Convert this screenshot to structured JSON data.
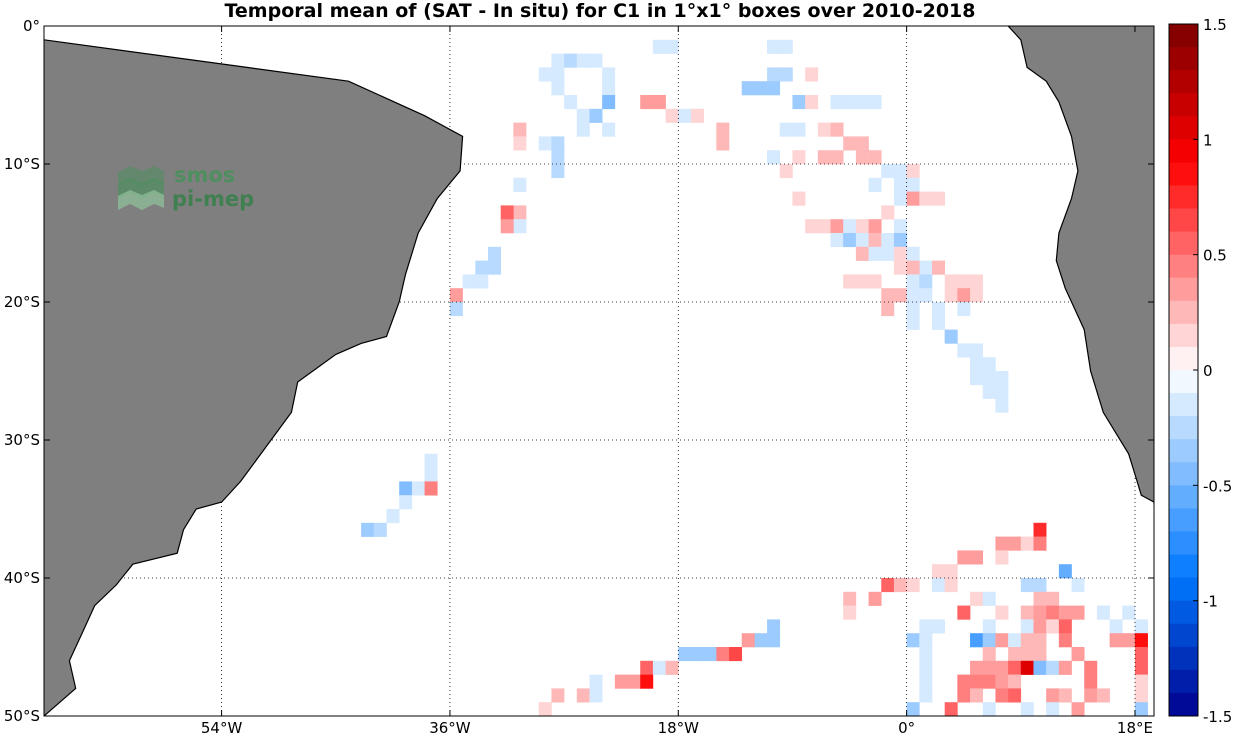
{
  "chart_data": {
    "type": "heatmap",
    "title": "Temporal mean of (SAT - In situ) for C1 in 1°x1° boxes over 2010-2018",
    "xlabel": "",
    "ylabel": "",
    "xlim": [
      -68,
      19.5
    ],
    "ylim": [
      -50,
      0
    ],
    "x_ticks": [
      {
        "value": -54,
        "label": "54°W"
      },
      {
        "value": -36,
        "label": "36°W"
      },
      {
        "value": -18,
        "label": "18°W"
      },
      {
        "value": 0,
        "label": "0°"
      },
      {
        "value": 18,
        "label": "18°E"
      }
    ],
    "y_ticks": [
      {
        "value": 0,
        "label": "0°"
      },
      {
        "value": -10,
        "label": "10°S"
      },
      {
        "value": -20,
        "label": "20°S"
      },
      {
        "value": -30,
        "label": "30°S"
      },
      {
        "value": -40,
        "label": "40°S"
      },
      {
        "value": -50,
        "label": "50°S"
      }
    ],
    "grid": true,
    "colorbar": {
      "range": [
        -1.5,
        1.5
      ],
      "levels": 30,
      "ticks": [
        {
          "value": 1.5,
          "label": "1.5"
        },
        {
          "value": 1,
          "label": "1"
        },
        {
          "value": 0.5,
          "label": "0.5"
        },
        {
          "value": 0,
          "label": "0"
        },
        {
          "value": -0.5,
          "label": "-0.5"
        },
        {
          "value": -1,
          "label": "-1"
        },
        {
          "value": -1.5,
          "label": "-1.5"
        }
      ]
    },
    "land": {
      "south_america": [
        [
          -68,
          -1
        ],
        [
          -52,
          -3
        ],
        [
          -44,
          -4
        ],
        [
          -38,
          -6.5
        ],
        [
          -35,
          -8
        ],
        [
          -35.2,
          -10.5
        ],
        [
          -37,
          -12.5
        ],
        [
          -38.5,
          -15
        ],
        [
          -39.5,
          -18
        ],
        [
          -40,
          -20
        ],
        [
          -41,
          -22.5
        ],
        [
          -43,
          -23
        ],
        [
          -45,
          -23.8
        ],
        [
          -48,
          -25.8
        ],
        [
          -48.5,
          -28
        ],
        [
          -50.5,
          -30.5
        ],
        [
          -52.5,
          -33
        ],
        [
          -54,
          -34.5
        ],
        [
          -56,
          -35
        ],
        [
          -57,
          -36.5
        ],
        [
          -57.5,
          -38.2
        ],
        [
          -61,
          -39
        ],
        [
          -62.3,
          -40.5
        ],
        [
          -64,
          -42
        ],
        [
          -65,
          -44
        ],
        [
          -66,
          -46
        ],
        [
          -65.5,
          -48
        ],
        [
          -68,
          -50
        ]
      ],
      "africa": [
        [
          8,
          0
        ],
        [
          9,
          -1
        ],
        [
          9.5,
          -3
        ],
        [
          11,
          -4
        ],
        [
          12,
          -5.5
        ],
        [
          13,
          -8
        ],
        [
          13.5,
          -10.5
        ],
        [
          13,
          -12.5
        ],
        [
          12,
          -15
        ],
        [
          11.8,
          -17
        ],
        [
          12.5,
          -19
        ],
        [
          14,
          -22
        ],
        [
          14.5,
          -25
        ],
        [
          15.5,
          -28
        ],
        [
          16.5,
          -29.5
        ],
        [
          17.5,
          -31
        ],
        [
          18,
          -32.5
        ],
        [
          18.5,
          -34
        ],
        [
          19.5,
          -34.5
        ]
      ]
    },
    "cells": [
      [
        -20,
        -1,
        -0.1
      ],
      [
        -19,
        -1,
        -0.1
      ],
      [
        -11,
        -1,
        -0.15
      ],
      [
        -10,
        -1,
        -0.1
      ],
      [
        -28,
        -2,
        -0.15
      ],
      [
        -27,
        -2,
        -0.25
      ],
      [
        -26,
        -2,
        -0.1
      ],
      [
        -25,
        -2,
        -0.15
      ],
      [
        -29,
        -3,
        -0.1
      ],
      [
        -28,
        -3,
        -0.2
      ],
      [
        -24,
        -3,
        -0.1
      ],
      [
        -11,
        -3,
        -0.25
      ],
      [
        -10,
        -3,
        -0.25
      ],
      [
        -8,
        -3,
        0.1
      ],
      [
        -11,
        -4,
        -0.3
      ],
      [
        -28,
        -4,
        -0.1
      ],
      [
        -24,
        -4,
        -0.1
      ],
      [
        -13,
        -4,
        -0.3
      ],
      [
        -12,
        -4,
        -0.3
      ],
      [
        -27,
        -5,
        -0.2
      ],
      [
        -24,
        -5,
        -0.5
      ],
      [
        -21,
        -5,
        0.3
      ],
      [
        -20,
        -5,
        0.3
      ],
      [
        -9,
        -5,
        -0.3
      ],
      [
        -8,
        -5,
        0.1
      ],
      [
        -6,
        -5,
        -0.1
      ],
      [
        -5,
        -5,
        -0.1
      ],
      [
        -4,
        -5,
        -0.1
      ],
      [
        -3,
        -5,
        -0.1
      ],
      [
        -26,
        -6,
        -0.1
      ],
      [
        -25,
        -6,
        -0.3
      ],
      [
        -19,
        -6,
        0.1
      ],
      [
        -18,
        -6,
        -0.1
      ],
      [
        -17,
        -6,
        0.1
      ],
      [
        -31,
        -7,
        0.2
      ],
      [
        -26,
        -7,
        -0.1
      ],
      [
        -24,
        -7,
        -0.2
      ],
      [
        -15,
        -7,
        0.2
      ],
      [
        -10,
        -7,
        -0.15
      ],
      [
        -9,
        -7,
        -0.1
      ],
      [
        -7,
        -7,
        0.1
      ],
      [
        -6,
        -7,
        0.2
      ],
      [
        -31,
        -8,
        0.1
      ],
      [
        -29,
        -8,
        -0.1
      ],
      [
        -28,
        -8,
        -0.25
      ],
      [
        -15,
        -8,
        0.2
      ],
      [
        -5,
        -8,
        0.2
      ],
      [
        -4,
        -8,
        0.2
      ],
      [
        -28,
        -9,
        -0.25
      ],
      [
        -11,
        -9,
        -0.1
      ],
      [
        -9,
        -9,
        0.1
      ],
      [
        -7,
        -9,
        0.2
      ],
      [
        -6,
        -9,
        0.2
      ],
      [
        -4,
        -9,
        0.2
      ],
      [
        -3,
        -9,
        0.2
      ],
      [
        -28,
        -10,
        -0.25
      ],
      [
        -10,
        -10,
        0.1
      ],
      [
        -2,
        -10,
        -0.1
      ],
      [
        -1,
        -10,
        -0.1
      ],
      [
        0,
        -10,
        0.1
      ],
      [
        -3,
        -11,
        -0.1
      ],
      [
        -1,
        -11,
        -0.1
      ],
      [
        0,
        -11,
        -0.1
      ],
      [
        -31,
        -11,
        -0.2
      ],
      [
        -1,
        -12,
        -0.1
      ],
      [
        -9,
        -12,
        0.1
      ],
      [
        0,
        -12,
        0.4
      ],
      [
        1,
        -12,
        0.1
      ],
      [
        2,
        -12,
        0.1
      ],
      [
        -31,
        -13,
        0.2
      ],
      [
        -32,
        -13,
        0.5
      ],
      [
        -31,
        -14,
        -0.1
      ],
      [
        -32,
        -14,
        0.4
      ],
      [
        -2,
        -13,
        0.1
      ],
      [
        -8,
        -14,
        0.15
      ],
      [
        -7,
        -14,
        0.15
      ],
      [
        -6,
        -14,
        0.3
      ],
      [
        -5,
        -14,
        -0.15
      ],
      [
        -4,
        -14,
        0.15
      ],
      [
        -3,
        -14,
        0.3
      ],
      [
        -1,
        -14,
        -0.15
      ],
      [
        -6,
        -15,
        -0.15
      ],
      [
        -5,
        -15,
        -0.3
      ],
      [
        -4,
        -15,
        -0.1
      ],
      [
        -3,
        -15,
        0.2
      ],
      [
        -2,
        -15,
        -0.1
      ],
      [
        -1,
        -15,
        -0.35
      ],
      [
        -33,
        -16,
        -0.25
      ],
      [
        -4,
        -16,
        0.2
      ],
      [
        -3,
        -16,
        -0.1
      ],
      [
        -2,
        -16,
        -0.1
      ],
      [
        -1,
        -16,
        0.1
      ],
      [
        0,
        -16,
        -0.15
      ],
      [
        -34,
        -17,
        -0.25
      ],
      [
        -33,
        -17,
        -0.25
      ],
      [
        1,
        -17,
        -0.2
      ],
      [
        -1,
        -17,
        0.1
      ],
      [
        0,
        -17,
        0.2
      ],
      [
        2,
        -17,
        0.2
      ],
      [
        -35,
        -18,
        -0.2
      ],
      [
        -34,
        -18,
        -0.2
      ],
      [
        -5,
        -18,
        0.15
      ],
      [
        -4,
        -18,
        0.15
      ],
      [
        -3,
        -18,
        0.15
      ],
      [
        0,
        -18,
        -0.1
      ],
      [
        1,
        -18,
        -0.25
      ],
      [
        3,
        -18,
        0.15
      ],
      [
        4,
        -18,
        0.15
      ],
      [
        5,
        -18,
        0.15
      ],
      [
        -36,
        -19,
        0.3
      ],
      [
        -2,
        -19,
        0.2
      ],
      [
        -1,
        -19,
        0.2
      ],
      [
        0,
        -19,
        -0.1
      ],
      [
        1,
        -19,
        -0.1
      ],
      [
        3,
        -19,
        0.15
      ],
      [
        4,
        -19,
        0.3
      ],
      [
        5,
        -19,
        0.15
      ],
      [
        -36,
        -20,
        -0.25
      ],
      [
        -2,
        -20,
        0.2
      ],
      [
        0,
        -20,
        -0.1
      ],
      [
        2,
        -20,
        -0.1
      ],
      [
        4,
        -20,
        -0.1
      ],
      [
        0,
        -21,
        -0.1
      ],
      [
        2,
        -21,
        -0.1
      ],
      [
        3,
        -22,
        -0.35
      ],
      [
        4,
        -23,
        -0.1
      ],
      [
        5,
        -23,
        -0.1
      ],
      [
        5,
        -24,
        -0.15
      ],
      [
        6,
        -24,
        -0.15
      ],
      [
        5,
        -25,
        -0.1
      ],
      [
        6,
        -25,
        -0.1
      ],
      [
        7,
        -25,
        -0.1
      ],
      [
        6,
        -26,
        -0.15
      ],
      [
        7,
        -26,
        -0.15
      ],
      [
        7,
        -27,
        -0.1
      ],
      [
        -38,
        -31,
        -0.1
      ],
      [
        -38,
        -32,
        -0.1
      ],
      [
        -40,
        -33,
        -0.5
      ],
      [
        -39,
        -33,
        -0.15
      ],
      [
        -38,
        -33,
        0.45
      ],
      [
        -40,
        -34,
        -0.2
      ],
      [
        -41,
        -35,
        -0.15
      ],
      [
        -43,
        -36,
        -0.3
      ],
      [
        -42,
        -36,
        -0.25
      ],
      [
        10,
        -36,
        0.7
      ],
      [
        7,
        -37,
        0.4
      ],
      [
        8,
        -37,
        0.3
      ],
      [
        9,
        -37,
        0.15
      ],
      [
        10,
        -37,
        0.45
      ],
      [
        4,
        -38,
        0.3
      ],
      [
        5,
        -38,
        0.3
      ],
      [
        7,
        -38,
        0.15
      ],
      [
        2,
        -39,
        0.15
      ],
      [
        3,
        -39,
        0.15
      ],
      [
        12,
        -39,
        -0.55
      ],
      [
        -2,
        -40,
        0.5
      ],
      [
        -1,
        -40,
        0.2
      ],
      [
        0,
        -40,
        0.15
      ],
      [
        2,
        -40,
        -0.1
      ],
      [
        3,
        -40,
        0.15
      ],
      [
        9,
        -40,
        -0.25
      ],
      [
        10,
        -40,
        -0.25
      ],
      [
        13,
        -40,
        -0.2
      ],
      [
        -5,
        -41,
        0.2
      ],
      [
        -3,
        -41,
        0.4
      ],
      [
        5,
        -41,
        0.15
      ],
      [
        6,
        -41,
        -0.1
      ],
      [
        10,
        -41,
        0.2
      ],
      [
        11,
        -41,
        0.2
      ],
      [
        -5,
        -42,
        0.15
      ],
      [
        4,
        -42,
        0.5
      ],
      [
        7,
        -42,
        0.15
      ],
      [
        9,
        -42,
        0.2
      ],
      [
        10,
        -42,
        0.3
      ],
      [
        11,
        -42,
        0.45
      ],
      [
        12,
        -42,
        0.4
      ],
      [
        13,
        -42,
        0.3
      ],
      [
        15,
        -42,
        -0.2
      ],
      [
        17,
        -42,
        -0.15
      ],
      [
        -11,
        -43,
        -0.4
      ],
      [
        1,
        -43,
        -0.1
      ],
      [
        2,
        -43,
        -0.1
      ],
      [
        6,
        -43,
        -0.1
      ],
      [
        9,
        -43,
        -0.1
      ],
      [
        10,
        -43,
        0.3
      ],
      [
        11,
        -43,
        0.15
      ],
      [
        12,
        -43,
        0.5
      ],
      [
        16,
        -43,
        -0.2
      ],
      [
        18,
        -43,
        -0.15
      ],
      [
        -12,
        -44,
        -0.3
      ],
      [
        -11,
        -44,
        -0.3
      ],
      [
        -13,
        -44,
        0.35
      ],
      [
        0,
        -44,
        -0.3
      ],
      [
        1,
        -44,
        -0.15
      ],
      [
        5,
        -44,
        -0.7
      ],
      [
        6,
        -44,
        -0.4
      ],
      [
        7,
        -44,
        0.4
      ],
      [
        8,
        -44,
        -0.2
      ],
      [
        9,
        -44,
        0.2
      ],
      [
        10,
        -44,
        0.2
      ],
      [
        12,
        -44,
        0.45
      ],
      [
        16,
        -44,
        0.3
      ],
      [
        17,
        -44,
        0.4
      ],
      [
        18,
        -44,
        0.9
      ],
      [
        -18,
        -45,
        -0.3
      ],
      [
        -17,
        -45,
        -0.3
      ],
      [
        -16,
        -45,
        -0.3
      ],
      [
        -15,
        -45,
        0.45
      ],
      [
        -14,
        -45,
        0.6
      ],
      [
        1,
        -45,
        -0.1
      ],
      [
        6,
        -45,
        0.2
      ],
      [
        8,
        -45,
        0.2
      ],
      [
        9,
        -45,
        0.2
      ],
      [
        10,
        -45,
        0.2
      ],
      [
        13,
        -45,
        0.3
      ],
      [
        18,
        -45,
        0.5
      ],
      [
        -21,
        -46,
        0.55
      ],
      [
        -20,
        -46,
        -0.2
      ],
      [
        -19,
        -46,
        0.2
      ],
      [
        1,
        -46,
        -0.1
      ],
      [
        5,
        -46,
        0.35
      ],
      [
        6,
        -46,
        0.35
      ],
      [
        7,
        -46,
        0.35
      ],
      [
        8,
        -46,
        0.5
      ],
      [
        9,
        -46,
        1.0
      ],
      [
        10,
        -46,
        -0.5
      ],
      [
        11,
        -46,
        -0.25
      ],
      [
        12,
        -46,
        0.35
      ],
      [
        14,
        -46,
        0.45
      ],
      [
        18,
        -46,
        0.5
      ],
      [
        -25,
        -47,
        -0.1
      ],
      [
        -23,
        -47,
        0.35
      ],
      [
        -22,
        -47,
        0.35
      ],
      [
        -21,
        -47,
        0.9
      ],
      [
        1,
        -47,
        -0.1
      ],
      [
        4,
        -47,
        0.45
      ],
      [
        5,
        -47,
        0.45
      ],
      [
        6,
        -47,
        0.45
      ],
      [
        7,
        -47,
        0.3
      ],
      [
        8,
        -47,
        0.2
      ],
      [
        14,
        -47,
        0.45
      ],
      [
        18,
        -47,
        0.1
      ],
      [
        -28,
        -48,
        0.2
      ],
      [
        -26,
        -48,
        0.2
      ],
      [
        -25,
        -48,
        -0.1
      ],
      [
        1,
        -48,
        -0.1
      ],
      [
        4,
        -48,
        0.45
      ],
      [
        5,
        -48,
        0.2
      ],
      [
        7,
        -48,
        0.45
      ],
      [
        8,
        -48,
        0.5
      ],
      [
        11,
        -48,
        0.3
      ],
      [
        12,
        -48,
        0.2
      ],
      [
        14,
        -48,
        0.3
      ],
      [
        15,
        -48,
        0.2
      ],
      [
        18,
        -48,
        0.1
      ],
      [
        -29,
        -49,
        0.15
      ],
      [
        0,
        -49,
        -0.35
      ],
      [
        3,
        -49,
        0.5
      ],
      [
        6,
        -49,
        -0.1
      ],
      [
        9,
        -49,
        -0.1
      ],
      [
        11,
        -49,
        -0.1
      ],
      [
        13,
        -49,
        0.4
      ],
      [
        18,
        -49,
        -0.3
      ],
      [
        0,
        -50,
        -0.5
      ],
      [
        2,
        -50,
        0.15
      ],
      [
        4,
        -50,
        0.15
      ],
      [
        7,
        -50,
        -0.15
      ],
      [
        16,
        -50,
        0.3
      ]
    ]
  },
  "logo": {
    "line1": "smos",
    "line2": "pi-mep",
    "color": "#4f8f5f"
  },
  "colors": {
    "land": "#7f7f7f",
    "coast": "#000000",
    "grid": "#000000"
  }
}
